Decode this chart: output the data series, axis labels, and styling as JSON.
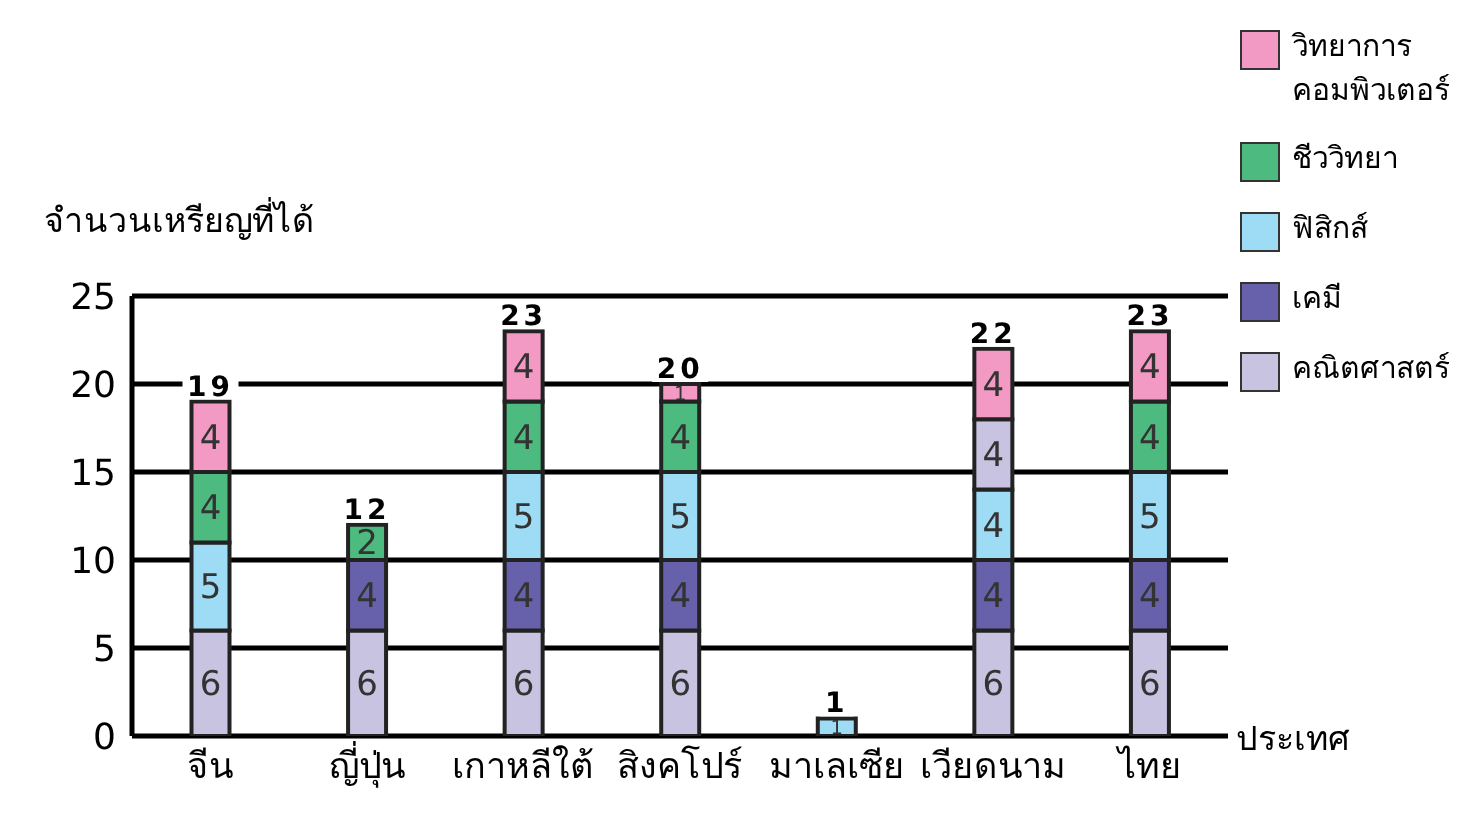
{
  "chart_data": {
    "type": "bar",
    "stacked": true,
    "ylabel": "จำนวนเหรียญที่ได้",
    "xlabel": "ประเทศ",
    "categories": [
      "จีน",
      "ญี่ปุ่น",
      "เกาหลีใต้",
      "สิงคโปร์",
      "มาเลเซีย",
      "เวียดนาม",
      "ไทย"
    ],
    "series": [
      {
        "name": "คณิตศาสตร์",
        "color": "#c8c3e0",
        "values": [
          6,
          6,
          6,
          6,
          null,
          6,
          6
        ]
      },
      {
        "name": "เคมี",
        "color": "#6761ab",
        "values": [
          null,
          4,
          4,
          4,
          null,
          4,
          4
        ]
      },
      {
        "name": "ฟิสิกส์",
        "color": "#9edcf5",
        "values": [
          5,
          null,
          5,
          5,
          1,
          4,
          5
        ]
      },
      {
        "name": "ชีววิทยา",
        "color": "#4dbb7f",
        "colors": [
          "#4dbb7f",
          "#4dbb7f",
          "#4dbb7f",
          "#4dbb7f",
          "#4dbb7f",
          "#c8c3e0",
          "#4dbb7f"
        ],
        "values": [
          4,
          2,
          4,
          4,
          null,
          4,
          4
        ]
      },
      {
        "name": "วิทยาการคอมพิวเตอร์",
        "color": "#f29ac4",
        "values": [
          4,
          null,
          4,
          1,
          null,
          4,
          4
        ]
      }
    ],
    "totals": [
      "19",
      "12",
      "23",
      "20",
      "1",
      "22",
      "23"
    ],
    "data_labels": true,
    "ylim": [
      0,
      25
    ],
    "yticks": [
      0,
      5,
      10,
      15,
      20,
      25
    ],
    "grid": "y",
    "legend": "right"
  }
}
